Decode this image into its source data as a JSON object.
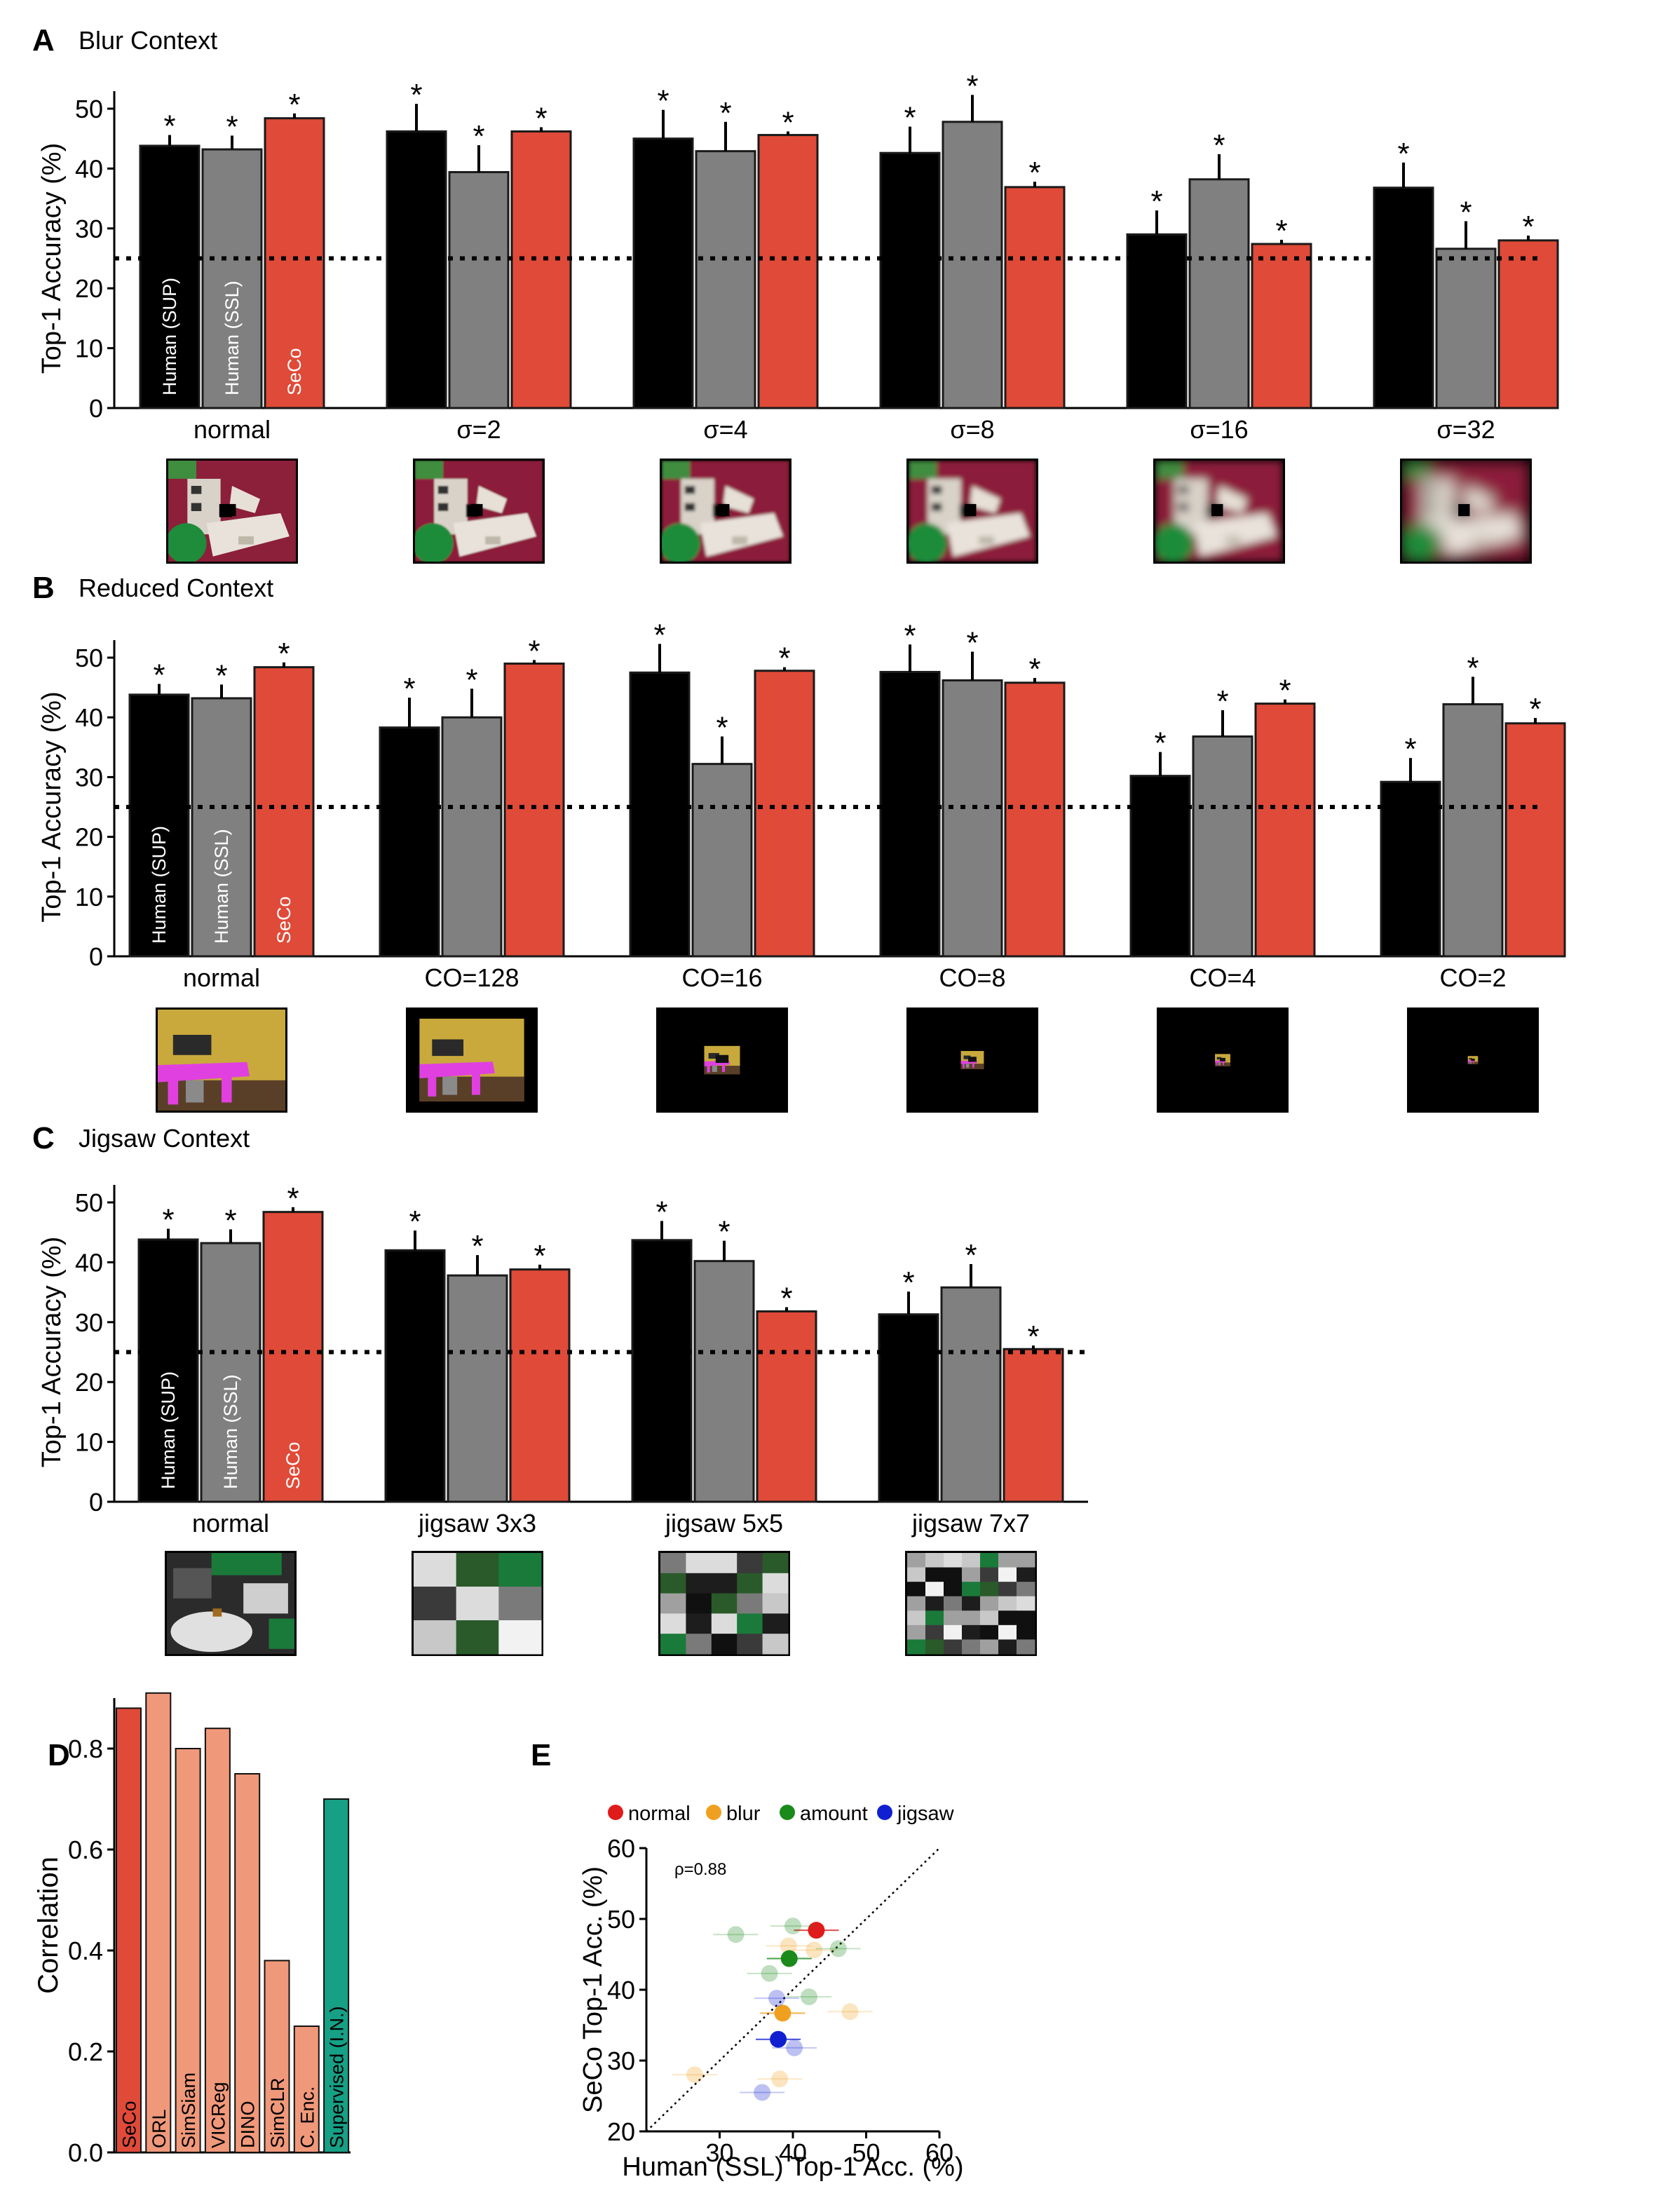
{
  "colors": {
    "human_sup": "#000000",
    "human_ssl": "#808080",
    "seco": "#e04a38",
    "ssl_models": "#f0997a",
    "supervised": "#16a085",
    "normal": "#e01b1b",
    "blur": "#f0a020",
    "amount": "#1a8a1a",
    "jigsaw": "#1020d0",
    "wall_red": "#8c1f3a",
    "wall_yellow": "#c9a93c",
    "desk_magenta": "#e040e0",
    "chair_green": "#1e8c3a",
    "desk_white": "#e8e2da",
    "tile_green": "#1a7a3a"
  },
  "chart_data": [
    {
      "id": "A",
      "type": "bar",
      "panel_letter": "A",
      "title": "Blur Context",
      "ylabel": "Top-1 Accuracy (%)",
      "ylim": [
        0,
        50
      ],
      "yticks": [
        "0",
        "10",
        "20",
        "30",
        "40",
        "50"
      ],
      "chance": 25,
      "categories": [
        "normal",
        "σ=2",
        "σ=4",
        "σ=8",
        "σ=16",
        "σ=32"
      ],
      "series": [
        {
          "name": "Human (SUP)",
          "color_key": "human_sup",
          "values": [
            43.8,
            46.2,
            45.0,
            42.6,
            29.0,
            36.8
          ],
          "err": [
            1.8,
            4.6,
            4.8,
            4.4,
            4.0,
            4.2
          ]
        },
        {
          "name": "Human (SSL)",
          "color_key": "human_ssl",
          "values": [
            43.2,
            39.4,
            42.9,
            47.8,
            38.2,
            26.6
          ],
          "err": [
            2.3,
            4.5,
            4.9,
            4.5,
            4.2,
            4.6
          ]
        },
        {
          "name": "SeCo",
          "color_key": "seco",
          "values": [
            48.4,
            46.2,
            45.6,
            36.9,
            27.4,
            28.0
          ],
          "err": [
            0.8,
            0.7,
            0.6,
            0.9,
            0.7,
            0.8
          ]
        }
      ],
      "stars": "*",
      "thumbnails": [
        "blur-0",
        "blur-2",
        "blur-4",
        "blur-8",
        "blur-16",
        "blur-32"
      ]
    },
    {
      "id": "B",
      "type": "bar",
      "panel_letter": "B",
      "title": "Reduced Context",
      "ylabel": "Top-1 Accuracy (%)",
      "ylim": [
        0,
        50
      ],
      "yticks": [
        "0",
        "10",
        "20",
        "30",
        "40",
        "50"
      ],
      "chance": 25,
      "categories": [
        "normal",
        "CO=128",
        "CO=16",
        "CO=8",
        "CO=4",
        "CO=2"
      ],
      "series": [
        {
          "name": "Human (SUP)",
          "color_key": "human_sup",
          "values": [
            43.8,
            38.3,
            47.5,
            47.6,
            30.2,
            29.2
          ],
          "err": [
            1.8,
            5.0,
            4.8,
            4.6,
            4.0,
            4.0
          ]
        },
        {
          "name": "Human (SSL)",
          "color_key": "human_ssl",
          "values": [
            43.2,
            40.0,
            32.2,
            46.2,
            36.8,
            42.2
          ],
          "err": [
            2.3,
            4.8,
            4.6,
            4.8,
            4.4,
            4.6
          ]
        },
        {
          "name": "SeCo",
          "color_key": "seco",
          "values": [
            48.4,
            49.0,
            47.8,
            45.8,
            42.3,
            39.0
          ],
          "err": [
            0.8,
            0.6,
            0.6,
            0.8,
            0.7,
            0.9
          ]
        }
      ],
      "stars": "*",
      "thumbnails": [
        "co-full",
        "co-128",
        "co-16",
        "co-8",
        "co-4",
        "co-2"
      ]
    },
    {
      "id": "C",
      "type": "bar",
      "panel_letter": "C",
      "title": "Jigsaw Context",
      "ylabel": "Top-1 Accuracy (%)",
      "ylim": [
        0,
        50
      ],
      "yticks": [
        "0",
        "10",
        "20",
        "30",
        "40",
        "50"
      ],
      "chance": 25,
      "categories": [
        "normal",
        "jigsaw 3x3",
        "jigsaw 5x5",
        "jigsaw 7x7"
      ],
      "series": [
        {
          "name": "Human (SUP)",
          "color_key": "human_sup",
          "values": [
            43.8,
            42.0,
            43.7,
            31.3
          ],
          "err": [
            1.8,
            3.3,
            3.2,
            3.8
          ]
        },
        {
          "name": "Human (SSL)",
          "color_key": "human_ssl",
          "values": [
            43.2,
            37.8,
            40.2,
            35.8
          ],
          "err": [
            2.3,
            3.4,
            3.4,
            3.9
          ]
        },
        {
          "name": "SeCo",
          "color_key": "seco",
          "values": [
            48.4,
            38.8,
            31.8,
            25.5
          ],
          "err": [
            0.8,
            0.8,
            0.7,
            0.6
          ]
        }
      ],
      "stars": "*",
      "thumbnails": [
        "jig-1",
        "jig-3",
        "jig-5",
        "jig-7"
      ]
    },
    {
      "id": "D",
      "type": "bar",
      "panel_letter": "D",
      "ylabel": "Correlation",
      "ylim": [
        0,
        0.9
      ],
      "yticks": [
        "0.0",
        "0.2",
        "0.4",
        "0.6",
        "0.8"
      ],
      "categories": [
        "SeCo",
        "ORL",
        "SimSiam",
        "VICReg",
        "DINO",
        "SimCLR",
        "C. Enc.",
        "Supervised (I.N.)"
      ],
      "values": [
        0.88,
        0.91,
        0.8,
        0.84,
        0.75,
        0.38,
        0.25,
        0.7
      ],
      "bar_colors": [
        "seco",
        "ssl_models",
        "ssl_models",
        "ssl_models",
        "ssl_models",
        "ssl_models",
        "ssl_models",
        "supervised"
      ]
    },
    {
      "id": "E",
      "type": "scatter",
      "panel_letter": "E",
      "xlabel": "Human (SSL) Top-1 Acc. (%)",
      "ylabel": "SeCo Top-1 Acc. (%)",
      "xlim": [
        20,
        60
      ],
      "ylim": [
        20,
        60
      ],
      "xticks": [
        "30",
        "40",
        "50",
        "60"
      ],
      "yticks": [
        "20",
        "30",
        "40",
        "50",
        "60"
      ],
      "annotation": "ρ=0.88",
      "legend": [
        {
          "label": "normal",
          "color_key": "normal"
        },
        {
          "label": "blur",
          "color_key": "blur"
        },
        {
          "label": "amount",
          "color_key": "amount"
        },
        {
          "label": "jigsaw",
          "color_key": "jigsaw"
        }
      ],
      "points": [
        {
          "group": "normal",
          "x": 43.2,
          "y": 48.4,
          "faded": false
        },
        {
          "group": "blur",
          "x": 39.4,
          "y": 46.2,
          "faded": true
        },
        {
          "group": "blur",
          "x": 42.9,
          "y": 45.6,
          "faded": true
        },
        {
          "group": "blur",
          "x": 47.8,
          "y": 36.9,
          "faded": true
        },
        {
          "group": "blur",
          "x": 38.2,
          "y": 27.4,
          "faded": true
        },
        {
          "group": "blur",
          "x": 26.6,
          "y": 28.0,
          "faded": true
        },
        {
          "group": "blur",
          "x": 38.6,
          "y": 36.7,
          "faded": false
        },
        {
          "group": "amount",
          "x": 40.0,
          "y": 49.0,
          "faded": true
        },
        {
          "group": "amount",
          "x": 32.2,
          "y": 47.8,
          "faded": true
        },
        {
          "group": "amount",
          "x": 46.2,
          "y": 45.8,
          "faded": true
        },
        {
          "group": "amount",
          "x": 36.8,
          "y": 42.3,
          "faded": true
        },
        {
          "group": "amount",
          "x": 42.2,
          "y": 39.0,
          "faded": true
        },
        {
          "group": "amount",
          "x": 39.5,
          "y": 44.4,
          "faded": false
        },
        {
          "group": "jigsaw",
          "x": 37.8,
          "y": 38.8,
          "faded": true
        },
        {
          "group": "jigsaw",
          "x": 40.2,
          "y": 31.8,
          "faded": true
        },
        {
          "group": "jigsaw",
          "x": 35.8,
          "y": 25.5,
          "faded": true
        },
        {
          "group": "jigsaw",
          "x": 38.0,
          "y": 33.0,
          "faded": false
        }
      ]
    }
  ]
}
